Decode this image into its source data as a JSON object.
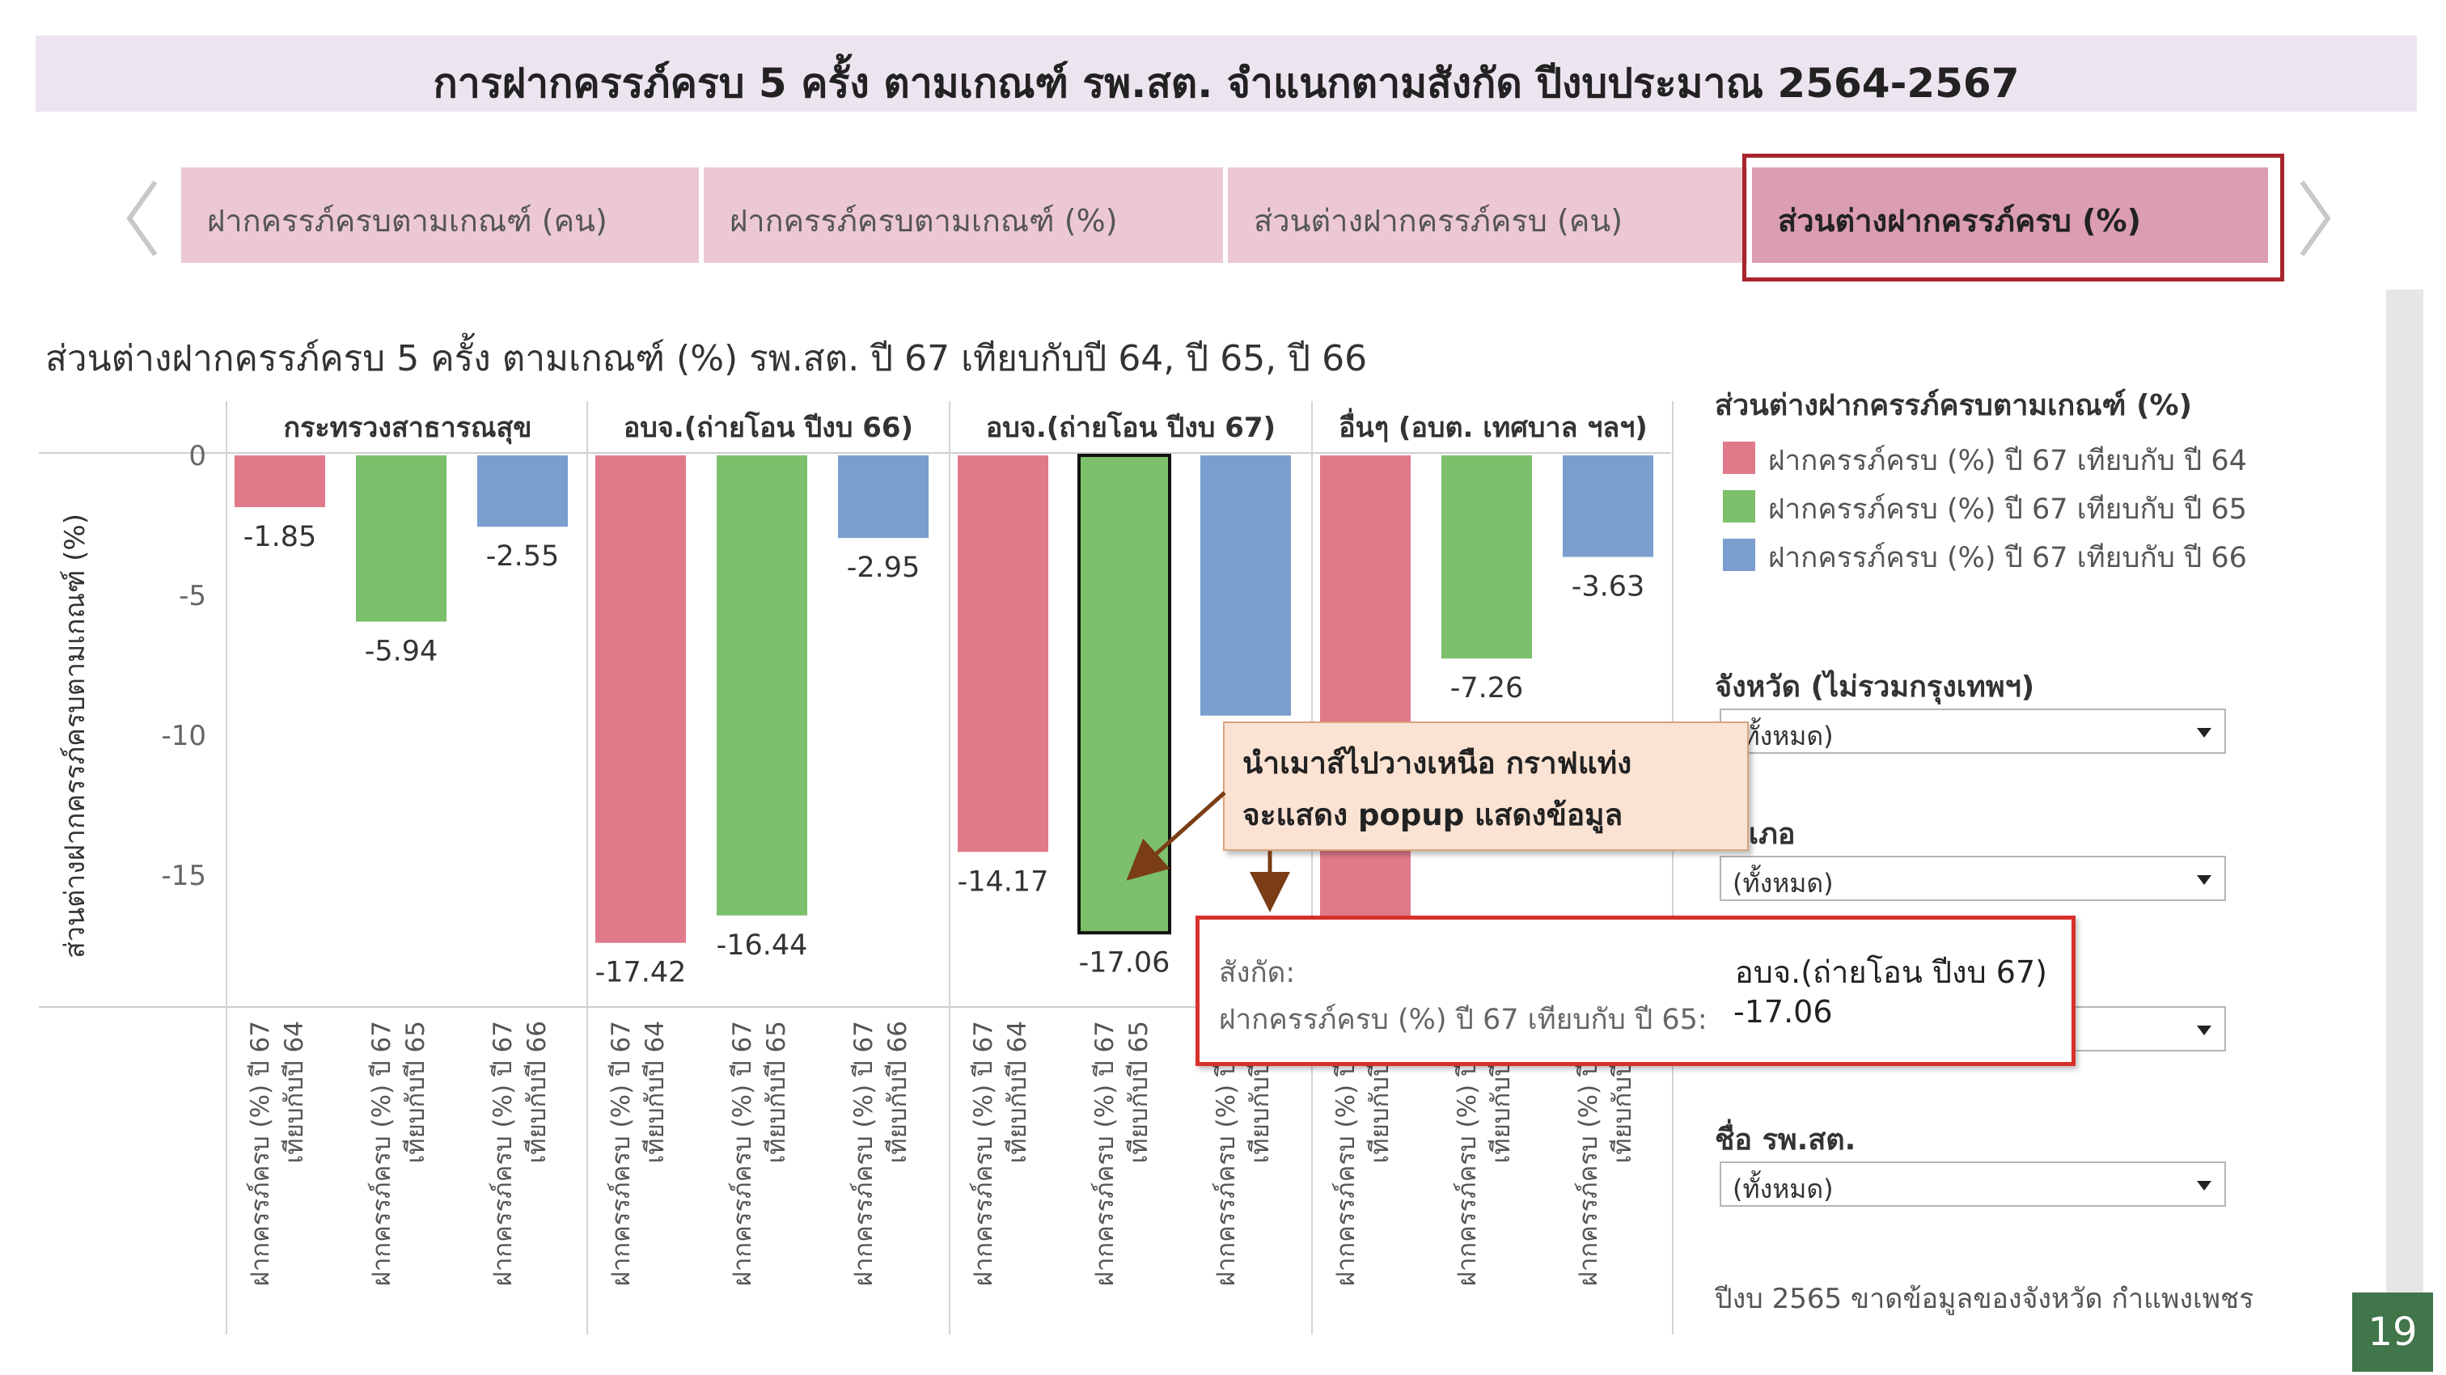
{
  "page": {
    "title": "การฝากครรภ์ครบ 5 ครั้ง ตามเกณฑ์ รพ.สต. จำแนกตามสังกัด ปีงบประมาณ 2564-2567",
    "page_number": "19"
  },
  "tabs": [
    {
      "label": "ฝากครรภ์ครบตามเกณฑ์ (คน)",
      "active": false
    },
    {
      "label": "ฝากครรภ์ครบตามเกณฑ์ (%)",
      "active": false
    },
    {
      "label": "ส่วนต่างฝากครรภ์ครบ (คน)",
      "active": false
    },
    {
      "label": "ส่วนต่างฝากครรภ์ครบ (%)",
      "active": true
    }
  ],
  "legend": {
    "title": "ส่วนต่างฝากครรภ์ครบตามเกณฑ์ (%)",
    "items": [
      {
        "label": "ฝากครรภ์ครบ (%) ปี 67 เทียบกับ ปี 64",
        "color": "#e07a8a"
      },
      {
        "label": "ฝากครรภ์ครบ (%) ปี 67 เทียบกับ ปี 65",
        "color": "#7cc06b"
      },
      {
        "label": "ฝากครรภ์ครบ (%) ปี 67 เทียบกับ ปี 66",
        "color": "#7a9ecd"
      }
    ]
  },
  "filters": [
    {
      "label": "จังหวัด (ไม่รวมกรุงเทพฯ)",
      "value": "(ทั้งหมด)"
    },
    {
      "label": "อำเภอ",
      "value": "(ทั้งหมด)"
    },
    {
      "label": "",
      "value": ""
    },
    {
      "label": "ชื่อ รพ.สต.",
      "value": "(ทั้งหมด)"
    }
  ],
  "footnote": "ปีงบ 2565 ขาดข้อมูลของจังหวัด กำแพงเพชร",
  "callout": {
    "line1": "นำเมาส์ไปวางเหนือ กราฟแท่ง",
    "line2": "จะแสดง popup แสดงข้อมูล"
  },
  "tooltip": {
    "label1": "สังกัด:",
    "value1": "อบจ.(ถ่ายโอน ปีงบ 67)",
    "label2": "ฝากครรภ์ครบ (%) ปี 67 เทียบกับ ปี 65:",
    "value2": "-17.06"
  },
  "chart_data": {
    "type": "bar",
    "title": "ส่วนต่างฝากครรภ์ครบ 5 ครั้ง ตามเกณฑ์ (%) รพ.สต. ปี 67 เทียบกับปี 64, ปี 65, ปี 66",
    "ylabel": "ส่วนต่างฝากครรภ์ครบตามเกณฑ์ (%)",
    "ylim": [
      -19.5,
      0.8
    ],
    "yticks": [
      0,
      -5,
      -10,
      -15
    ],
    "groups": [
      "กระทรวงสาธารณสุข",
      "อบจ.(ถ่ายโอน ปีงบ 66)",
      "อบจ.(ถ่ายโอน ปีงบ 67)",
      "อื่นๆ (อบต. เทศบาล ฯลฯ)"
    ],
    "series": [
      {
        "name": "ฝากครรภ์ครบ (%) ปี 67 เทียบกับ ปี 64",
        "color": "#e07a8a",
        "values": [
          -1.85,
          -17.42,
          -14.17,
          -19.0
        ]
      },
      {
        "name": "ฝากครรภ์ครบ (%) ปี 67 เทียบกับ ปี 65",
        "color": "#7cc06b",
        "values": [
          -5.94,
          -16.44,
          -17.06,
          -7.26
        ]
      },
      {
        "name": "ฝากครรภ์ครบ (%) ปี 67 เทียบกับ ปี 66",
        "color": "#7a9ecd",
        "values": [
          -2.55,
          -2.95,
          -9.3,
          -3.63
        ]
      }
    ],
    "value_labels": [
      [
        "-1.85",
        "-5.94",
        "-2.55"
      ],
      [
        "-17.42",
        "-16.44",
        "-2.95"
      ],
      [
        "-14.17",
        "-17.06",
        ""
      ],
      [
        "",
        "-7.26",
        "-3.63"
      ]
    ],
    "x_labels": [
      [
        "ฝากครรภ์ครบ (%) ปี 67",
        "เทียบกับปี 64"
      ],
      [
        "ฝากครรภ์ครบ (%) ปี 67",
        "เทียบกับปี 65"
      ],
      [
        "ฝากครรภ์ครบ (%) ปี 67",
        "เทียบกับปี 66"
      ]
    ],
    "highlighted": {
      "group": 2,
      "series": 1
    }
  }
}
